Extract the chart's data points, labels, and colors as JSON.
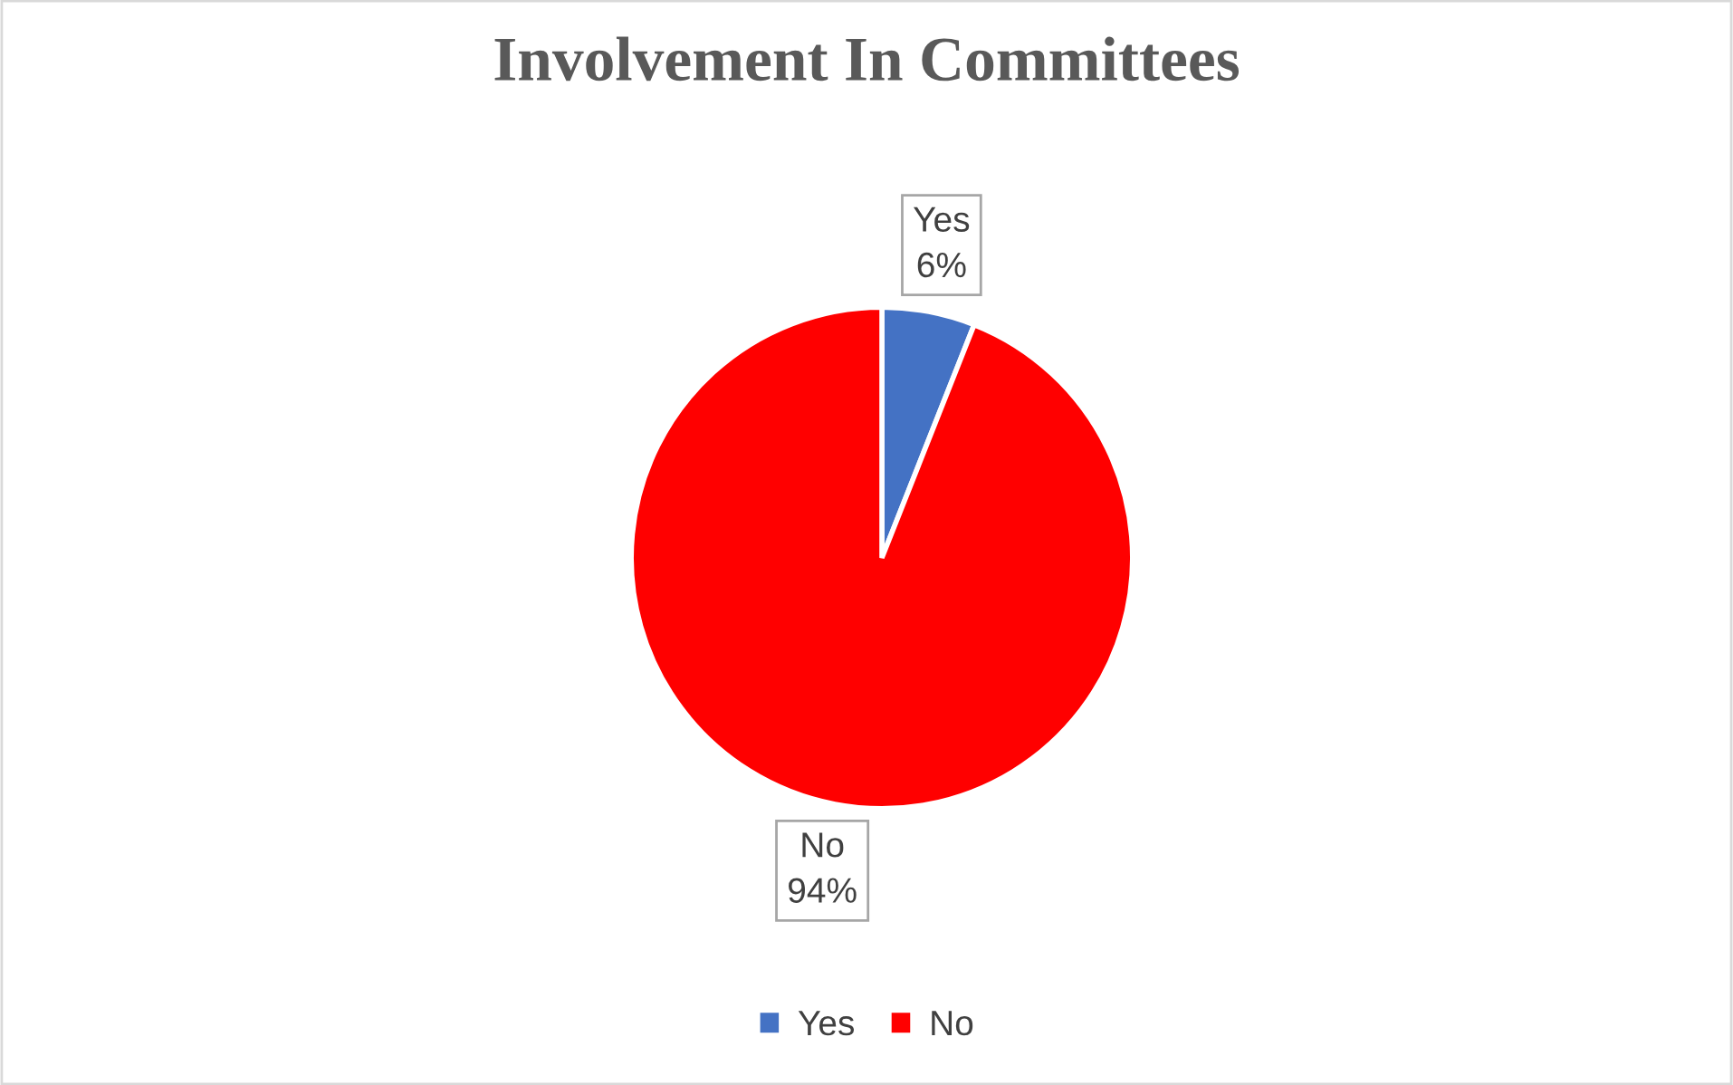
{
  "chart_data": {
    "type": "pie",
    "title": "Involvement In Committees",
    "categories": [
      "Yes",
      "No"
    ],
    "values": [
      6,
      94
    ],
    "colors": [
      "#4472c4",
      "#ff0000"
    ],
    "value_labels": [
      "6%",
      "94%"
    ],
    "legend": "bottom"
  }
}
